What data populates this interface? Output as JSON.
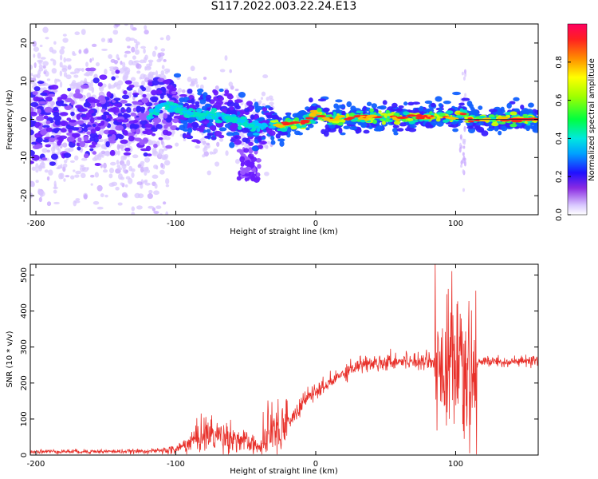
{
  "title": "S117.2022.003.22.24.E13",
  "colors": {
    "snr_line": "#e8302a",
    "spectrogram_low": "#d9c8ff",
    "spectrogram_mid": "#3a1fff",
    "spectrogram_ridge": "#00e5ff",
    "spectrogram_peak": "#ff2020"
  },
  "chart_data": [
    {
      "type": "heatmap",
      "name": "spectrogram",
      "xlabel": "Height of straight line (km)",
      "ylabel": "Frequency (Hz)",
      "xlim": [
        -204,
        159
      ],
      "ylim": [
        -25,
        25
      ],
      "x_ticks": [
        -200,
        -100,
        0,
        100
      ],
      "y_ticks": [
        -20,
        -10,
        0,
        10,
        20
      ],
      "colorbar": {
        "label": "Normalized spectral amplitude",
        "range": [
          0,
          1
        ],
        "ticks": [
          0.0,
          0.2,
          0.4,
          0.6,
          0.8
        ],
        "colormap": "rainbow (violet to red)"
      },
      "ridge": {
        "x": [
          -200,
          -180,
          -160,
          -140,
          -120,
          -110,
          -100,
          -90,
          -80,
          -70,
          -60,
          -50,
          -45,
          -40,
          -35,
          -30,
          -25,
          -20,
          -15,
          -10,
          -5,
          0,
          5,
          10,
          20,
          30,
          40,
          50,
          60,
          70,
          80,
          90,
          100,
          105,
          110,
          120,
          130,
          140,
          150,
          159
        ],
        "frequency": [
          0,
          0,
          0,
          0.5,
          0.5,
          4,
          3,
          1.5,
          1,
          1,
          0,
          -1,
          -2,
          -2.5,
          -1,
          -1,
          -2,
          -1,
          -1,
          -1,
          0,
          2,
          1,
          0,
          0.5,
          0.5,
          0.5,
          0.5,
          0.5,
          0.5,
          0.5,
          1,
          0.5,
          2,
          0,
          0,
          0,
          0,
          0,
          0
        ]
      }
    },
    {
      "type": "line",
      "name": "snr",
      "xlabel": "Height of straight line (km)",
      "ylabel": "SNR (10 * v/v)",
      "xlim": [
        -204,
        159
      ],
      "ylim": [
        0,
        530
      ],
      "x_ticks": [
        -200,
        -100,
        0,
        100
      ],
      "y_ticks": [
        0,
        100,
        200,
        300,
        400,
        500
      ],
      "envelope": {
        "x": [
          -204,
          -190,
          -170,
          -150,
          -130,
          -110,
          -100,
          -90,
          -80,
          -70,
          -60,
          -50,
          -40,
          -35,
          -30,
          -25,
          -20,
          -15,
          -10,
          -5,
          0,
          5,
          10,
          20,
          30,
          40,
          50,
          60,
          70,
          80,
          85,
          90,
          95,
          100,
          105,
          110,
          115,
          120,
          130,
          140,
          150,
          159
        ],
        "snr": [
          10,
          10,
          10,
          10,
          10,
          12,
          15,
          35,
          60,
          55,
          50,
          35,
          20,
          40,
          70,
          80,
          90,
          110,
          140,
          165,
          175,
          185,
          200,
          230,
          250,
          255,
          260,
          262,
          262,
          265,
          258,
          250,
          245,
          240,
          200,
          200,
          250,
          260,
          260,
          258,
          260,
          260
        ]
      }
    }
  ]
}
